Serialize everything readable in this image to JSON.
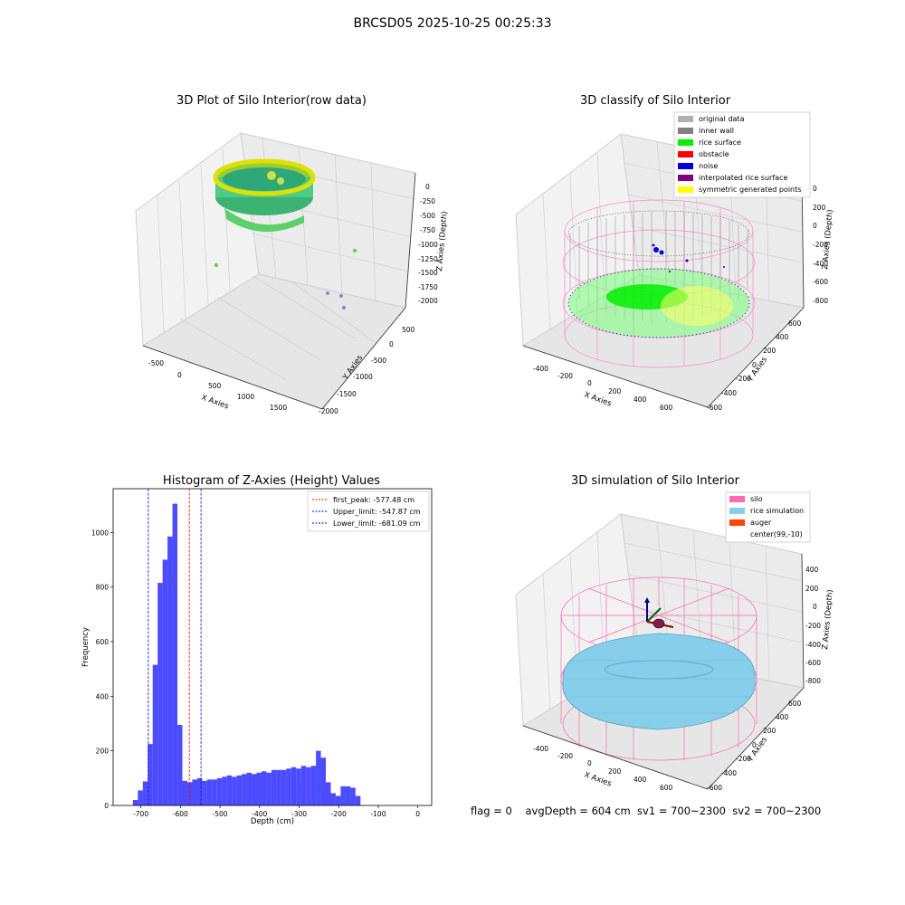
{
  "suptitle": "BRCSD05 2025-10-25 00:25:33",
  "footer_text": "flag = 0    avgDepth = 604 cm  sv1 = 700~2300  sv2 = 700~2300",
  "panels": {
    "raw": {
      "title": "3D Plot of Silo Interior(row data)",
      "xlabel": "X Axies",
      "ylabel": "Y Axies",
      "zlabel": "Z Axies (Depth)",
      "x_ticks": [
        "-500",
        "0",
        "500",
        "1000",
        "1500"
      ],
      "y_ticks": [
        "500",
        "0",
        "-500",
        "-1000",
        "-1500",
        "-2000"
      ],
      "z_ticks": [
        "0",
        "-250",
        "-500",
        "-750",
        "-1000",
        "-1250",
        "-1500",
        "-1750",
        "-2000"
      ]
    },
    "classify": {
      "title": "3D classify of Silo Interior",
      "xlabel": "X Axies",
      "ylabel": "Y Axies",
      "zlabel": "Z Axies (Depth)",
      "x_ticks": [
        "-400",
        "-200",
        "0",
        "200",
        "400",
        "600"
      ],
      "y_ticks": [
        "600",
        "400",
        "200",
        "0",
        "-200",
        "-400",
        "-600"
      ],
      "z_ticks": [
        "200",
        "0",
        "-200",
        "-400",
        "-600",
        "-800"
      ],
      "z_top_tick": "0",
      "legend": [
        {
          "label": "original data",
          "color": "#b0b0b0"
        },
        {
          "label": "inner wall",
          "color": "#808080"
        },
        {
          "label": "rice surface",
          "color": "#00ee00"
        },
        {
          "label": "obstacle",
          "color": "#ff0000"
        },
        {
          "label": "noise",
          "color": "#0000dd"
        },
        {
          "label": "interpolated rice surface",
          "color": "#800080"
        },
        {
          "label": "symmetric generated points",
          "color": "#ffff00"
        }
      ]
    },
    "simulation": {
      "title": "3D simulation of Silo Interior",
      "xlabel": "X Axies",
      "ylabel": "Y Axies",
      "zlabel": "Z Axies (Depth)",
      "x_ticks": [
        "-400",
        "-200",
        "0",
        "200",
        "400",
        "600"
      ],
      "y_ticks": [
        "600",
        "400",
        "200",
        "0",
        "-200",
        "-400",
        "-600"
      ],
      "z_ticks": [
        "400",
        "200",
        "0",
        "-200",
        "-400",
        "-600",
        "-800"
      ],
      "legend": [
        {
          "label": "silo",
          "color": "#ff69b4"
        },
        {
          "label": "rice simulation",
          "color": "#87ceeb"
        },
        {
          "label": "auger",
          "color": "#ff4500"
        },
        {
          "label": "center(99,-10)",
          "color": ""
        }
      ]
    }
  },
  "chart_data": {
    "type": "bar",
    "title": "Histogram of Z-Axies (Height) Values",
    "xlabel": "Depth (cm)",
    "ylabel": "Frequency",
    "xlim": [
      -770,
      35
    ],
    "ylim": [
      0,
      1160
    ],
    "x_ticks": [
      -700,
      -600,
      -500,
      -400,
      -300,
      -200,
      -100,
      0
    ],
    "y_ticks": [
      0,
      200,
      400,
      600,
      800,
      1000
    ],
    "bin_width": 12.5,
    "bin_start": -720,
    "values": [
      20,
      55,
      88,
      225,
      515,
      815,
      900,
      985,
      1105,
      295,
      90,
      85,
      95,
      100,
      90,
      95,
      95,
      100,
      105,
      110,
      105,
      110,
      115,
      120,
      115,
      120,
      125,
      120,
      130,
      130,
      130,
      135,
      140,
      135,
      145,
      140,
      145,
      200,
      175,
      85,
      45,
      35,
      70,
      70,
      65,
      35
    ],
    "bar_color": "#0000ff",
    "lines": [
      {
        "label": "first_peak: -577.48 cm",
        "value": -577.48,
        "color": "#ff0000"
      },
      {
        "label": "Upper_limit: -547.87 cm",
        "value": -547.87,
        "color": "#0000ff"
      },
      {
        "label": "Lower_limit: -681.09 cm",
        "value": -681.09,
        "color": "#0000ff"
      }
    ],
    "legend_position": "top-right"
  }
}
